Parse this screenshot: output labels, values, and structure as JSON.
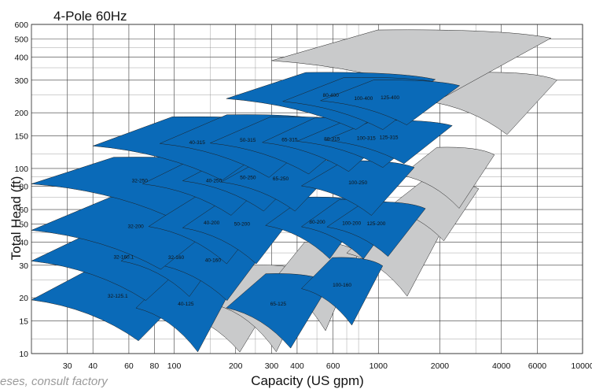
{
  "chart_data": {
    "type": "area",
    "title": "4-Pole 60Hz",
    "xlabel": "Capacity (US gpm)",
    "ylabel": "Total Head (ft)",
    "x_scale": "log",
    "y_scale": "log",
    "xlim": [
      20,
      10000
    ],
    "ylim": [
      10,
      600
    ],
    "x_ticks": [
      30,
      40,
      60,
      80,
      100,
      200,
      300,
      400,
      600,
      1000,
      2000,
      4000,
      6000,
      10000
    ],
    "y_ticks": [
      10,
      15,
      20,
      30,
      40,
      50,
      60,
      80,
      100,
      150,
      200,
      300,
      400,
      500,
      600
    ],
    "grid": true,
    "colors": {
      "highlighted": "#0a6ab8",
      "other": "#c9cacb",
      "outline": "#202020"
    },
    "series": [
      {
        "name": "32-125.1",
        "highlighted": true,
        "head": [
          11.5,
          30
        ],
        "capacity": [
          20,
          140
        ]
      },
      {
        "name": "40-125",
        "highlighted": true,
        "head": [
          10,
          28
        ],
        "capacity": [
          65,
          200
        ]
      },
      {
        "name": "65-125",
        "highlighted": true,
        "head": [
          10.5,
          27
        ],
        "capacity": [
          180,
          580
        ]
      },
      {
        "name": "100-160",
        "highlighted": true,
        "head": [
          14,
          33
        ],
        "capacity": [
          420,
          1050
        ]
      },
      {
        "name": "32-160.1",
        "highlighted": true,
        "head": [
          19,
          48
        ],
        "capacity": [
          20,
          160
        ]
      },
      {
        "name": "32-160",
        "highlighted": true,
        "head": [
          20,
          46
        ],
        "capacity": [
          55,
          190
        ]
      },
      {
        "name": "40-160",
        "highlighted": true,
        "head": [
          19,
          45
        ],
        "capacity": [
          80,
          300
        ]
      },
      {
        "name": "32-200",
        "highlighted": true,
        "head": [
          28,
          70
        ],
        "capacity": [
          20,
          210
        ]
      },
      {
        "name": "40-200",
        "highlighted": true,
        "head": [
          30,
          72
        ],
        "capacity": [
          75,
          310
        ]
      },
      {
        "name": "50-200",
        "highlighted": true,
        "head": [
          30,
          70
        ],
        "capacity": [
          110,
          420
        ]
      },
      {
        "name": "80-200",
        "highlighted": true,
        "head": [
          32,
          70
        ],
        "capacity": [
          280,
          900
        ]
      },
      {
        "name": "100-200",
        "highlighted": true,
        "head": [
          32,
          68
        ],
        "capacity": [
          420,
          1300
        ]
      },
      {
        "name": "125-200",
        "highlighted": true,
        "head": [
          33,
          66
        ],
        "capacity": [
          560,
          1700
        ]
      },
      {
        "name": "32-250",
        "highlighted": true,
        "head": [
          55,
          115
        ],
        "capacity": [
          20,
          230
        ]
      },
      {
        "name": "40-250",
        "highlighted": true,
        "head": [
          55,
          115
        ],
        "capacity": [
          70,
          350
        ]
      },
      {
        "name": "50-250",
        "highlighted": true,
        "head": [
          58,
          118
        ],
        "capacity": [
          110,
          480
        ]
      },
      {
        "name": "65-250",
        "highlighted": true,
        "head": [
          58,
          115
        ],
        "capacity": [
          170,
          650
        ]
      },
      {
        "name": "100-250",
        "highlighted": true,
        "head": [
          55,
          110
        ],
        "capacity": [
          420,
          1500
        ]
      },
      {
        "name": "40-315",
        "highlighted": true,
        "head": [
          85,
          190
        ],
        "capacity": [
          40,
          420
        ]
      },
      {
        "name": "50-315",
        "highlighted": true,
        "head": [
          88,
          195
        ],
        "capacity": [
          85,
          620
        ]
      },
      {
        "name": "65-315",
        "highlighted": true,
        "head": [
          92,
          190
        ],
        "capacity": [
          150,
          900
        ]
      },
      {
        "name": "80-315",
        "highlighted": true,
        "head": [
          95,
          188
        ],
        "capacity": [
          270,
          1300
        ]
      },
      {
        "name": "100-315",
        "highlighted": true,
        "head": [
          100,
          185
        ],
        "capacity": [
          400,
          1900
        ]
      },
      {
        "name": "125-315",
        "highlighted": true,
        "head": [
          105,
          182
        ],
        "capacity": [
          550,
          2300
        ]
      },
      {
        "name": "80-400",
        "highlighted": true,
        "head": [
          160,
          330
        ],
        "capacity": [
          180,
          1900
        ]
      },
      {
        "name": "100-400",
        "highlighted": true,
        "head": [
          160,
          310
        ],
        "capacity": [
          340,
          2100
        ]
      },
      {
        "name": "125-400",
        "highlighted": true,
        "head": [
          170,
          300
        ],
        "capacity": [
          520,
          2500
        ]
      },
      {
        "name": "",
        "highlighted": false,
        "head": [
          10,
          26
        ],
        "capacity": [
          100,
          330
        ]
      },
      {
        "name": "",
        "highlighted": false,
        "head": [
          10,
          30
        ],
        "capacity": [
          160,
          480
        ]
      },
      {
        "name": "",
        "highlighted": false,
        "head": [
          13,
          40
        ],
        "capacity": [
          300,
          800
        ]
      },
      {
        "name": "",
        "highlighted": false,
        "head": [
          20,
          55
        ],
        "capacity": [
          700,
          2100
        ]
      },
      {
        "name": "",
        "highlighted": false,
        "head": [
          40,
          85
        ],
        "capacity": [
          1100,
          3100
        ]
      },
      {
        "name": "",
        "highlighted": false,
        "head": [
          60,
          130
        ],
        "capacity": [
          1300,
          3700
        ]
      },
      {
        "name": "",
        "highlighted": false,
        "head": [
          150,
          330
        ],
        "capacity": [
          1700,
          7500
        ]
      },
      {
        "name": "",
        "highlighted": false,
        "head": [
          240,
          560
        ],
        "capacity": [
          300,
          7000
        ]
      }
    ]
  },
  "footnote": "eses, consult factory"
}
